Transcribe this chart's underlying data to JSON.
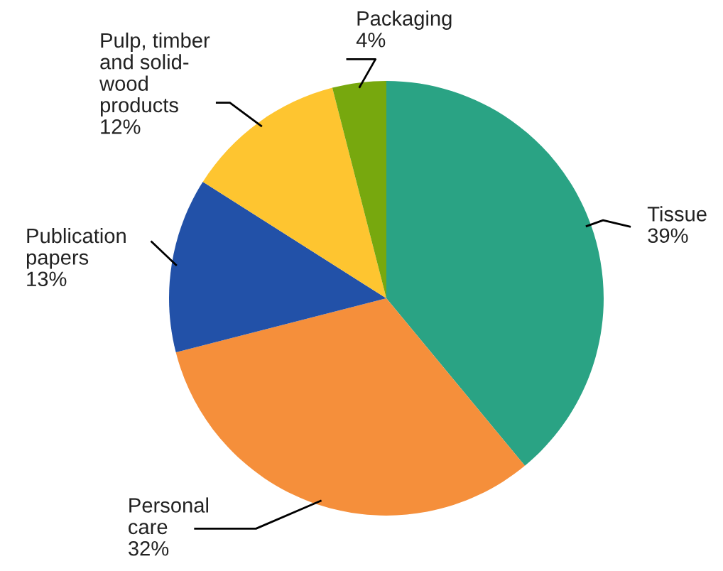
{
  "chart_data": {
    "type": "pie",
    "categories": [
      "Tissue",
      "Personal\ncare",
      "Publication\npapers",
      "Pulp, timber\nand solid-\nwood\nproducts",
      "Packaging"
    ],
    "values": [
      39,
      32,
      13,
      12,
      4
    ],
    "value_labels": [
      "39%",
      "32%",
      "13%",
      "12%",
      "4%"
    ],
    "colors": [
      "#2aa384",
      "#f58f3b",
      "#2251a8",
      "#fec530",
      "#77a80e"
    ],
    "legend": false
  }
}
